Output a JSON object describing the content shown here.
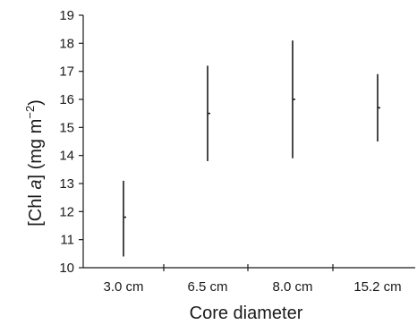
{
  "chart_data": {
    "type": "scatter",
    "ylabel": "[Chl a] (mg m-2)",
    "ylabel_parts": {
      "open": "[Chl ",
      "var": "a",
      "mid": "] (mg m",
      "sup": "−2",
      "close": ")"
    },
    "xlabel": "Core diameter",
    "categories": [
      "3.0 cm",
      "6.5 cm",
      "8.0 cm",
      "15.2 cm"
    ],
    "ylim": [
      10,
      19
    ],
    "y_ticks": [
      10,
      11,
      12,
      13,
      14,
      15,
      16,
      17,
      18,
      19
    ],
    "grid": false,
    "points": [
      {
        "category": "3.0 cm",
        "mean": 11.8,
        "low": 10.4,
        "high": 13.1
      },
      {
        "category": "6.5 cm",
        "mean": 15.5,
        "low": 13.8,
        "high": 17.2
      },
      {
        "category": "8.0 cm",
        "mean": 16.0,
        "low": 13.9,
        "high": 18.1
      },
      {
        "category": "15.2 cm",
        "mean": 15.7,
        "low": 14.5,
        "high": 16.9
      }
    ]
  }
}
